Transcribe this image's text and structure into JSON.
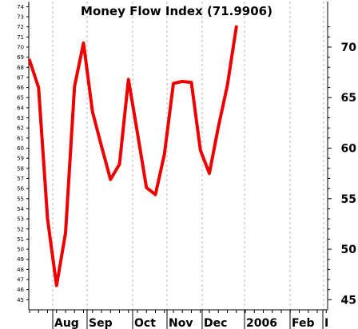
{
  "chart_data": {
    "type": "line",
    "title": "Money Flow Index (71.9906)",
    "ylim": [
      44,
      74.5
    ],
    "left_ticks": [
      "45",
      "46",
      "47",
      "48",
      "49",
      "50",
      "51",
      "52",
      "53",
      "54",
      "55",
      "56",
      "57",
      "58",
      "59",
      "60",
      "61",
      "62",
      "63",
      "64",
      "65",
      "66",
      "67",
      "68",
      "69",
      "70",
      "71",
      "72",
      "73",
      "74"
    ],
    "right_ticks": [
      "45",
      "50",
      "55",
      "60",
      "65",
      "70"
    ],
    "x_labels": [
      "Aug",
      "Sep",
      "Oct",
      "Nov",
      "Dec",
      "2006",
      "Feb",
      "I"
    ],
    "grid": true,
    "series": [
      {
        "color": "#ee0000",
        "x": [
          0,
          1,
          2,
          3,
          4,
          5,
          6,
          7,
          8,
          9,
          10,
          11,
          12,
          13,
          14,
          15,
          16,
          17,
          18,
          19,
          20,
          21,
          22,
          23
        ],
        "values": [
          68.7,
          66,
          53,
          46.4,
          51.6,
          66.1,
          70.4,
          63.6,
          60.2,
          56.9,
          58.4,
          66.8,
          61.5,
          56.1,
          55.4,
          59.4,
          66.4,
          66.6,
          66.5,
          59.8,
          57.5,
          62.1,
          66.2,
          72
        ]
      }
    ]
  }
}
